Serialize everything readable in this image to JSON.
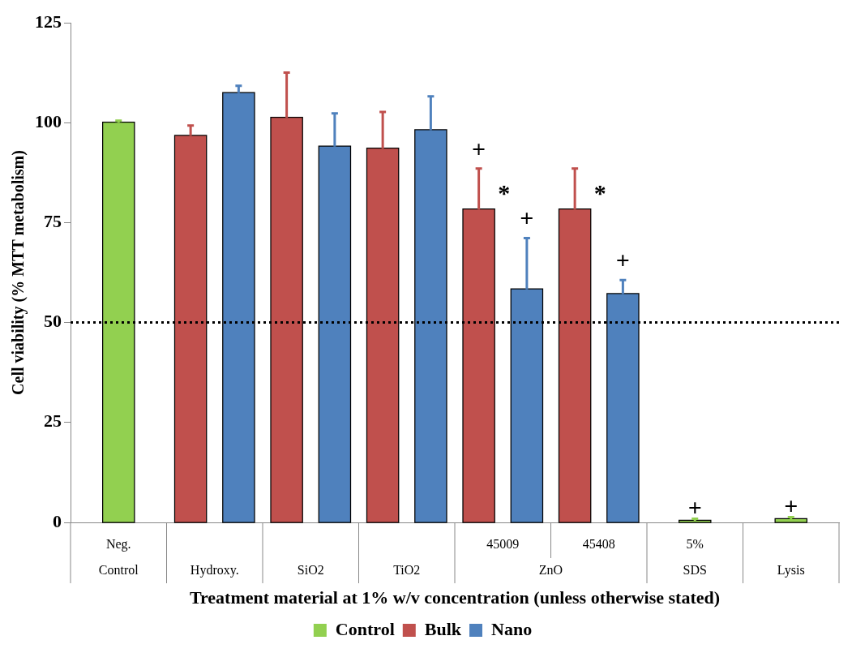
{
  "chart_data": {
    "type": "bar",
    "xlabel": "Treatment material at 1% w/v concentration (unless otherwise stated)",
    "ylabel": "Cell viability (% MTT metabolism)",
    "categories": [
      "Neg.\nControl",
      "\nHydroxy.",
      "\nSiO2",
      "\nTiO2",
      "45009",
      "45408",
      "5%\nSDS",
      "\nLysis"
    ],
    "series": [
      {
        "name": "Control",
        "color": "#92d050",
        "values": [
          100,
          null,
          null,
          null,
          null,
          null,
          0.4,
          0.8
        ],
        "errors": [
          0.5,
          null,
          null,
          null,
          null,
          null,
          0.5,
          0.5
        ]
      },
      {
        "name": "Bulk",
        "color": "#c0504d",
        "values": [
          null,
          96.7,
          101.2,
          93.5,
          78.3,
          78.3,
          null,
          null
        ],
        "errors": [
          null,
          2.6,
          11.3,
          9.2,
          10.2,
          10.2,
          null,
          null
        ]
      },
      {
        "name": "Nano",
        "color": "#4f81bd",
        "values": [
          null,
          107.4,
          94.0,
          98.1,
          58.3,
          57.1,
          null,
          null
        ],
        "errors": [
          null,
          1.8,
          8.3,
          8.5,
          12.8,
          3.5,
          null,
          null
        ]
      }
    ],
    "ylim": [
      0,
      125
    ],
    "yticks": [
      0,
      25,
      50,
      75,
      100,
      125
    ],
    "grid": false,
    "legend": "bottom",
    "ref_lines": [
      {
        "axis": "y",
        "value": 50,
        "color": "#000000",
        "line_style": "dotted"
      }
    ],
    "annotations": [
      "ZnO",
      "+",
      "*",
      "+",
      "*",
      "+",
      {
        "text": "+",
        "x": "5%\nSDS",
        "y": 0.9
      },
      {
        "text": "+",
        "x": "\nLysis",
        "y": 1.3
      }
    ]
  }
}
